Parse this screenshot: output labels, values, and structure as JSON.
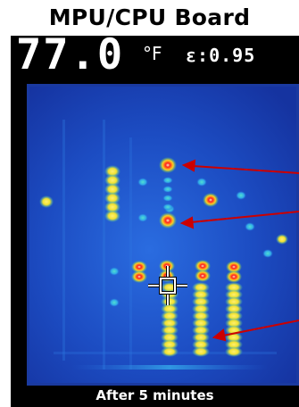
{
  "title": "MPU/CPU Board",
  "readout": {
    "temperature": "77.0",
    "unit": "°F",
    "emissivity": "ε:0.95"
  },
  "caption": "After 5 minutes",
  "colors": {
    "background": "#1a3aa8",
    "hot": "#ff1010",
    "warm": "#ffe020",
    "arrow": "#cc0000",
    "crosshair": "#ffffff"
  },
  "icons": [
    "crosshair-icon",
    "arrow-icon"
  ]
}
